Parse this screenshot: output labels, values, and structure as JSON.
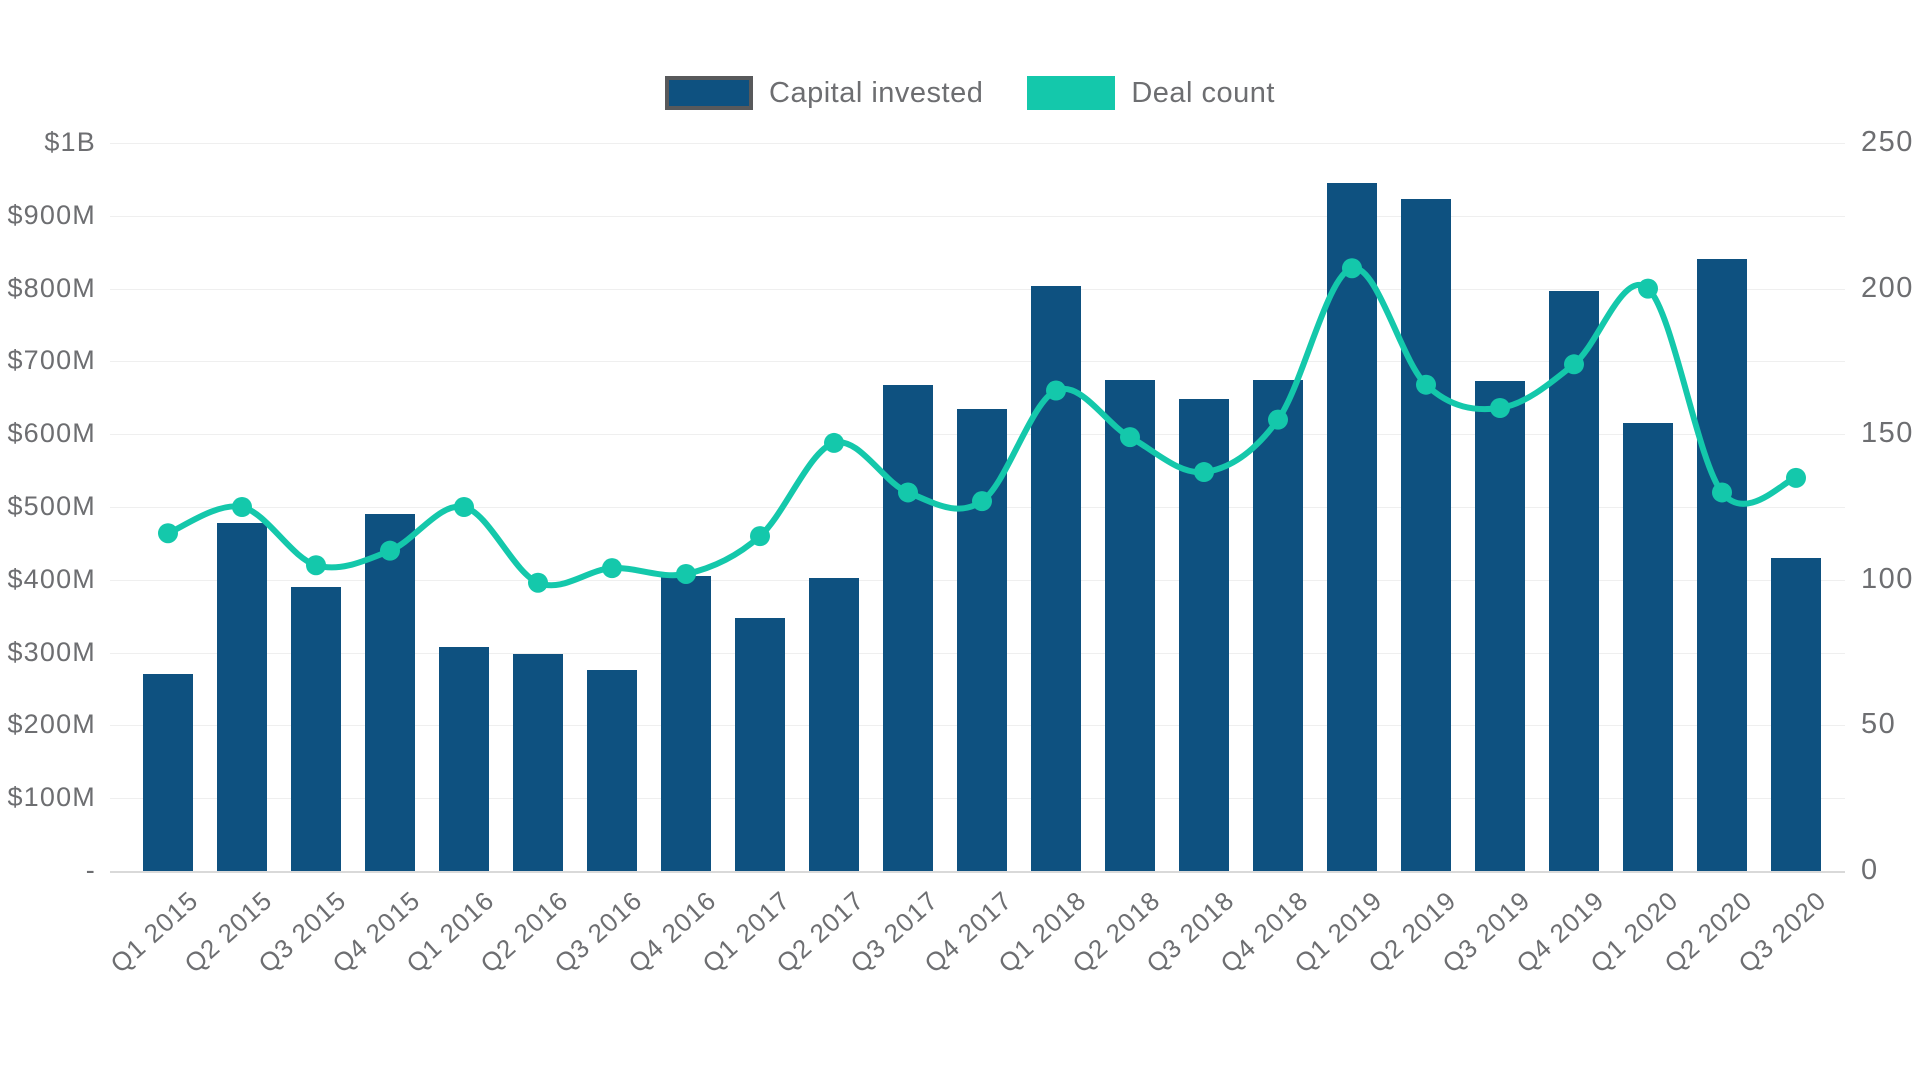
{
  "legend": {
    "capital_label": "Capital invested",
    "deal_label": "Deal count"
  },
  "axes": {
    "left": {
      "ticks": [
        {
          "label": "$1B",
          "value": 1000
        },
        {
          "label": "$900M",
          "value": 900
        },
        {
          "label": "$800M",
          "value": 800
        },
        {
          "label": "$700M",
          "value": 700
        },
        {
          "label": "$600M",
          "value": 600
        },
        {
          "label": "$500M",
          "value": 500
        },
        {
          "label": "$400M",
          "value": 400
        },
        {
          "label": "$300M",
          "value": 300
        },
        {
          "label": "$200M",
          "value": 200
        },
        {
          "label": "$100M",
          "value": 100
        },
        {
          "label": "-",
          "value": 0
        }
      ]
    },
    "right": {
      "ticks": [
        {
          "label": "250",
          "value": 250
        },
        {
          "label": "200",
          "value": 200
        },
        {
          "label": "150",
          "value": 150
        },
        {
          "label": "100",
          "value": 100
        },
        {
          "label": "50",
          "value": 50
        },
        {
          "label": "0",
          "value": 0
        }
      ]
    }
  },
  "chart_data": {
    "type": "bar+line combo",
    "title": "",
    "categories": [
      "Q1 2015",
      "Q2 2015",
      "Q3 2015",
      "Q4 2015",
      "Q1 2016",
      "Q2 2016",
      "Q3 2016",
      "Q4 2016",
      "Q1 2017",
      "Q2 2017",
      "Q3 2017",
      "Q4 2017",
      "Q1 2018",
      "Q2 2018",
      "Q3 2018",
      "Q4 2018",
      "Q1 2019",
      "Q2 2019",
      "Q3 2019",
      "Q4 2019",
      "Q1 2020",
      "Q2 2020",
      "Q3 2020"
    ],
    "series": [
      {
        "name": "Capital invested",
        "type": "bar",
        "axis": "left",
        "unit": "USD millions",
        "values": [
          270,
          478,
          390,
          490,
          308,
          298,
          276,
          405,
          348,
          403,
          668,
          635,
          803,
          675,
          648,
          675,
          945,
          923,
          673,
          797,
          616,
          840,
          430
        ]
      },
      {
        "name": "Deal count",
        "type": "line",
        "axis": "right",
        "unit": "deals",
        "values": [
          116,
          125,
          105,
          110,
          125,
          99,
          104,
          102,
          115,
          147,
          130,
          127,
          165,
          149,
          137,
          155,
          207,
          167,
          159,
          174,
          200,
          130,
          135
        ]
      }
    ],
    "left_axis": {
      "min": 0,
      "max": 1000,
      "tick_step": 100,
      "format": "$M"
    },
    "right_axis": {
      "min": 0,
      "max": 250,
      "tick_step": 50
    },
    "grid": "horizontal, every $100M",
    "legend_position": "top-center",
    "x_label_rotation_deg": -42
  },
  "colors": {
    "bar": "#0E5180",
    "line": "#14C8AB",
    "axis_text": "#6D6E71",
    "gridline": "#EFEFEF",
    "axis_line": "#D9D9D9",
    "legend_swatch_border": "#58595B",
    "background": "#FFFFFF"
  }
}
